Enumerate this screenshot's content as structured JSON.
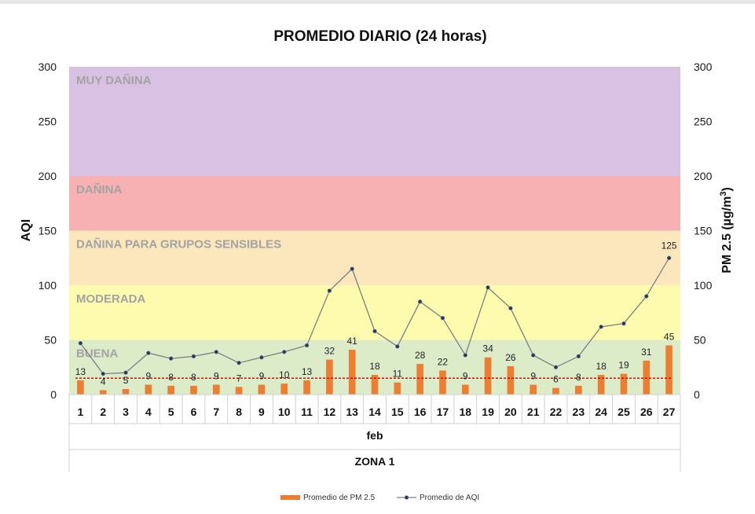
{
  "chart_data": {
    "type": "bar+line",
    "title": "PROMEDIO DIARIO (24 horas)",
    "ylabel_left": "AQI",
    "ylabel_right_main": "PM 2.5 (µg/m",
    "ylabel_right_sup": "3",
    "ylabel_right_end": ")",
    "x_group_label": "feb",
    "x_outer_label": "ZONA 1",
    "ylim": [
      0,
      300
    ],
    "yticks": [
      "0",
      "50",
      "100",
      "150",
      "200",
      "250",
      "300"
    ],
    "categories": [
      "1",
      "2",
      "3",
      "4",
      "5",
      "6",
      "7",
      "8",
      "9",
      "10",
      "11",
      "12",
      "13",
      "14",
      "15",
      "16",
      "17",
      "18",
      "19",
      "20",
      "21",
      "22",
      "23",
      "24",
      "25",
      "26",
      "27"
    ],
    "bands": [
      {
        "label": "BUENA",
        "from": 0,
        "to": 50,
        "color": "#dcecc9"
      },
      {
        "label": "MODERADA",
        "from": 50,
        "to": 100,
        "color": "#fdfbae"
      },
      {
        "label": "DAÑINA PARA GRUPOS SENSIBLES",
        "from": 100,
        "to": 150,
        "color": "#fce6bc"
      },
      {
        "label": "DAÑINA",
        "from": 150,
        "to": 200,
        "color": "#f8b1b2"
      },
      {
        "label": "MUY DAÑINA",
        "from": 200,
        "to": 300,
        "color": "#d8c1e3"
      }
    ],
    "series": [
      {
        "name": "Promedio de PM 2.5",
        "type": "bar",
        "color": "#ed7d31",
        "values": [
          13,
          4,
          5,
          9,
          8,
          8,
          9,
          7,
          9,
          10,
          13,
          32,
          41,
          18,
          11,
          28,
          22,
          9,
          34,
          26,
          9,
          6,
          8,
          18,
          19,
          31,
          45
        ],
        "labels": [
          "13",
          "4",
          "5",
          "9",
          "8",
          "8",
          "9",
          "7",
          "9",
          "10",
          "13",
          "32",
          "41",
          "18",
          "11",
          "28",
          "22",
          "9",
          "34",
          "26",
          "9",
          "6",
          "8",
          "18",
          "19",
          "31",
          "45"
        ]
      },
      {
        "name": "Promedio de AQI",
        "type": "line",
        "color": "#595959",
        "values": [
          47,
          19,
          20,
          38,
          33,
          35,
          39,
          29,
          34,
          39,
          45,
          95,
          115,
          58,
          44,
          85,
          70,
          36,
          98,
          79,
          36,
          25,
          35,
          62,
          65,
          90,
          125
        ],
        "last_label": "125"
      }
    ],
    "reference_line": {
      "value": 15,
      "color": "#c00000"
    },
    "legend_position": "bottom"
  }
}
